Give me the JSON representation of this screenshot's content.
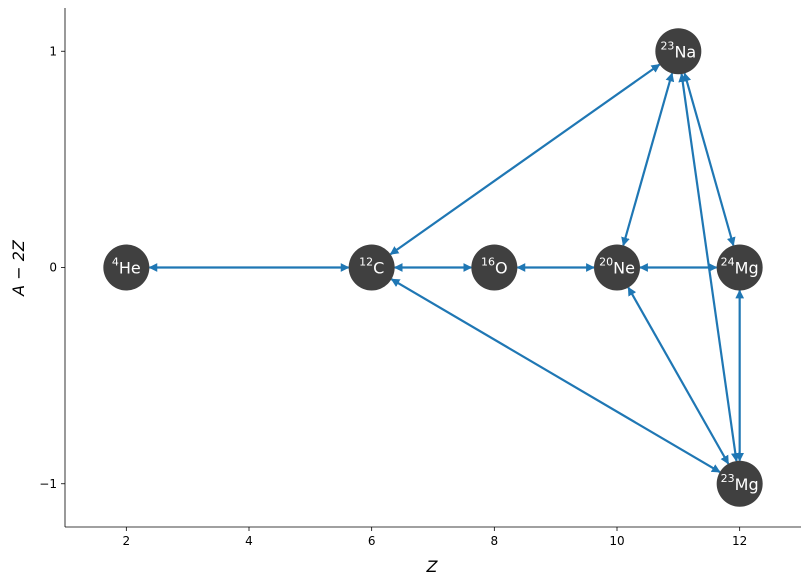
{
  "chart_data": {
    "type": "network",
    "xlabel": "Z",
    "ylabel": "A − 2Z",
    "xlim": [
      1,
      13
    ],
    "ylim": [
      -1.2,
      1.2
    ],
    "xticks": [
      2,
      4,
      6,
      8,
      10,
      12
    ],
    "yticks": [
      {
        "value": -1,
        "label": "−1"
      },
      0,
      1
    ],
    "node_color": "#404040",
    "edge_color": "#1f77b4",
    "nodes": [
      {
        "mass": 4,
        "label": "He",
        "x": 2,
        "y": 0
      },
      {
        "mass": 12,
        "label": "C",
        "x": 6,
        "y": 0
      },
      {
        "mass": 16,
        "label": "O",
        "x": 8,
        "y": 0
      },
      {
        "mass": 20,
        "label": "Ne",
        "x": 10,
        "y": 0
      },
      {
        "mass": 24,
        "label": "Mg",
        "x": 12,
        "y": 0
      },
      {
        "mass": 23,
        "label": "Na",
        "x": 11,
        "y": 1
      },
      {
        "mass": 23,
        "label": "Mg",
        "x": 12,
        "y": -1
      }
    ],
    "edges": [
      {
        "from": [
          2,
          0
        ],
        "to": [
          6,
          0
        ]
      },
      {
        "from": [
          6,
          0
        ],
        "to": [
          8,
          0
        ]
      },
      {
        "from": [
          8,
          0
        ],
        "to": [
          10,
          0
        ]
      },
      {
        "from": [
          10,
          0
        ],
        "to": [
          12,
          0
        ]
      },
      {
        "from": [
          6,
          0
        ],
        "to": [
          11,
          1
        ]
      },
      {
        "from": [
          6,
          0
        ],
        "to": [
          12,
          -1
        ]
      },
      {
        "from": [
          11,
          1
        ],
        "to": [
          10,
          0
        ]
      },
      {
        "from": [
          11,
          1
        ],
        "to": [
          12,
          0
        ]
      },
      {
        "from": [
          11,
          1
        ],
        "to": [
          12,
          -1
        ]
      },
      {
        "from": [
          10,
          0
        ],
        "to": [
          12,
          -1
        ]
      },
      {
        "from": [
          12,
          0
        ],
        "to": [
          12,
          -1
        ]
      }
    ]
  }
}
